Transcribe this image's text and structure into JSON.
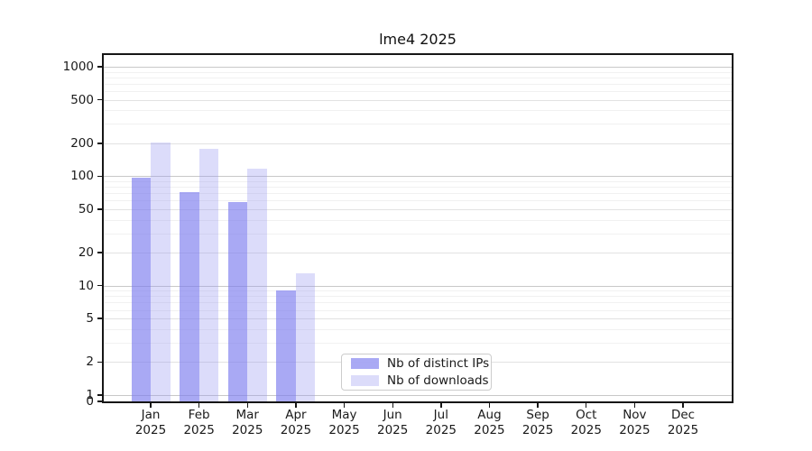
{
  "title": "lme4 2025",
  "chart_data": {
    "type": "bar",
    "title": "lme4 2025",
    "categories": [
      "Jan",
      "Feb",
      "Mar",
      "Apr",
      "May",
      "Jun",
      "Jul",
      "Aug",
      "Sep",
      "Oct",
      "Nov",
      "Dec"
    ],
    "year": "2025",
    "x_tick_label_format": "Month newline Year",
    "series": [
      {
        "name": "Nb of distinct IPs",
        "color": "rgba(124,124,238,0.66)",
        "approx_solid_color": "#a9a9f4",
        "values": [
          97,
          71,
          58,
          9,
          0,
          0,
          0,
          0,
          0,
          0,
          0,
          0
        ]
      },
      {
        "name": "Nb of downloads",
        "color": "rgba(150,150,240,0.33)",
        "approx_solid_color": "#dcdcfa",
        "values": [
          204,
          178,
          117,
          13,
          0,
          0,
          0,
          0,
          0,
          0,
          0,
          0
        ]
      }
    ],
    "yticks": [
      0,
      1,
      2,
      5,
      10,
      20,
      50,
      100,
      200,
      500,
      1000
    ],
    "xlabel": "",
    "ylabel": "",
    "yscale": "log (symlog, linear below 1)",
    "ylim": [
      0,
      1280
    ],
    "grid": "horizontal major + log minor gridlines",
    "legend_position": "inside plot, lower center-left",
    "bar_layout": "two bars per month, side by side"
  },
  "colors": {
    "axis": "#161616",
    "grid_major": "#c8c8c8",
    "grid_minor": "#f1f1f1",
    "background": "#ffffff"
  }
}
